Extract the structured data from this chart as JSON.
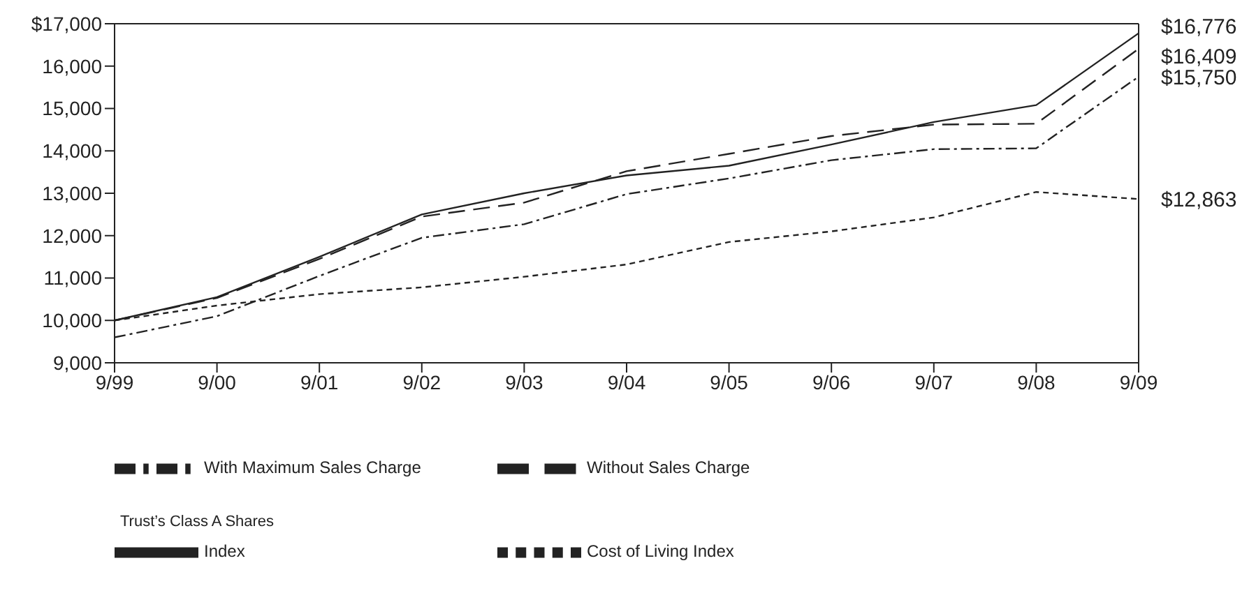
{
  "chart_data": {
    "type": "line",
    "categories": [
      "9/99",
      "9/00",
      "9/01",
      "9/02",
      "9/03",
      "9/04",
      "9/05",
      "9/06",
      "9/07",
      "9/08",
      "9/09"
    ],
    "series": [
      {
        "name": "With Maximum Sales Charge",
        "color": "#222222",
        "line_style": "dashdot",
        "values": [
          9600,
          10100,
          11050,
          11950,
          12270,
          12980,
          13350,
          13780,
          14040,
          14060,
          15750
        ]
      },
      {
        "name": "Without Sales Charge",
        "color": "#222222",
        "line_style": "dashed",
        "values": [
          10000,
          10530,
          11450,
          12450,
          12780,
          13520,
          13930,
          14350,
          14620,
          14640,
          16409
        ]
      },
      {
        "name": "Index",
        "color": "#222222",
        "line_style": "solid",
        "values": [
          10000,
          10550,
          11500,
          12500,
          13000,
          13420,
          13650,
          14150,
          14680,
          15080,
          16776
        ]
      },
      {
        "name": "Cost of Living Index",
        "color": "#222222",
        "line_style": "dotted",
        "values": [
          10000,
          10350,
          10620,
          10780,
          11030,
          11320,
          11850,
          12100,
          12430,
          13030,
          12863
        ]
      }
    ],
    "ylim": [
      9000,
      17000
    ],
    "yticks": [
      {
        "value": 9000,
        "label": "9,000"
      },
      {
        "value": 10000,
        "label": "10,000"
      },
      {
        "value": 11000,
        "label": "11,000"
      },
      {
        "value": 12000,
        "label": "12,000"
      },
      {
        "value": 13000,
        "label": "13,000"
      },
      {
        "value": 14000,
        "label": "14,000"
      },
      {
        "value": 15000,
        "label": "15,000"
      },
      {
        "value": 16000,
        "label": "16,000"
      },
      {
        "value": 17000,
        "label": "$17,000"
      }
    ],
    "legend_title": "Trust’s Class A Shares",
    "legend": "bottom",
    "grid": false,
    "marker": "none",
    "annotations": [
      {
        "text": "$16,776",
        "x": "9/09",
        "y": 16776
      },
      {
        "text": "$16,409",
        "x": "9/09",
        "y": 16409
      },
      {
        "text": "$15,750",
        "x": "9/09",
        "y": 15750
      },
      {
        "text": "$12,863",
        "x": "9/09",
        "y": 12863
      }
    ]
  }
}
